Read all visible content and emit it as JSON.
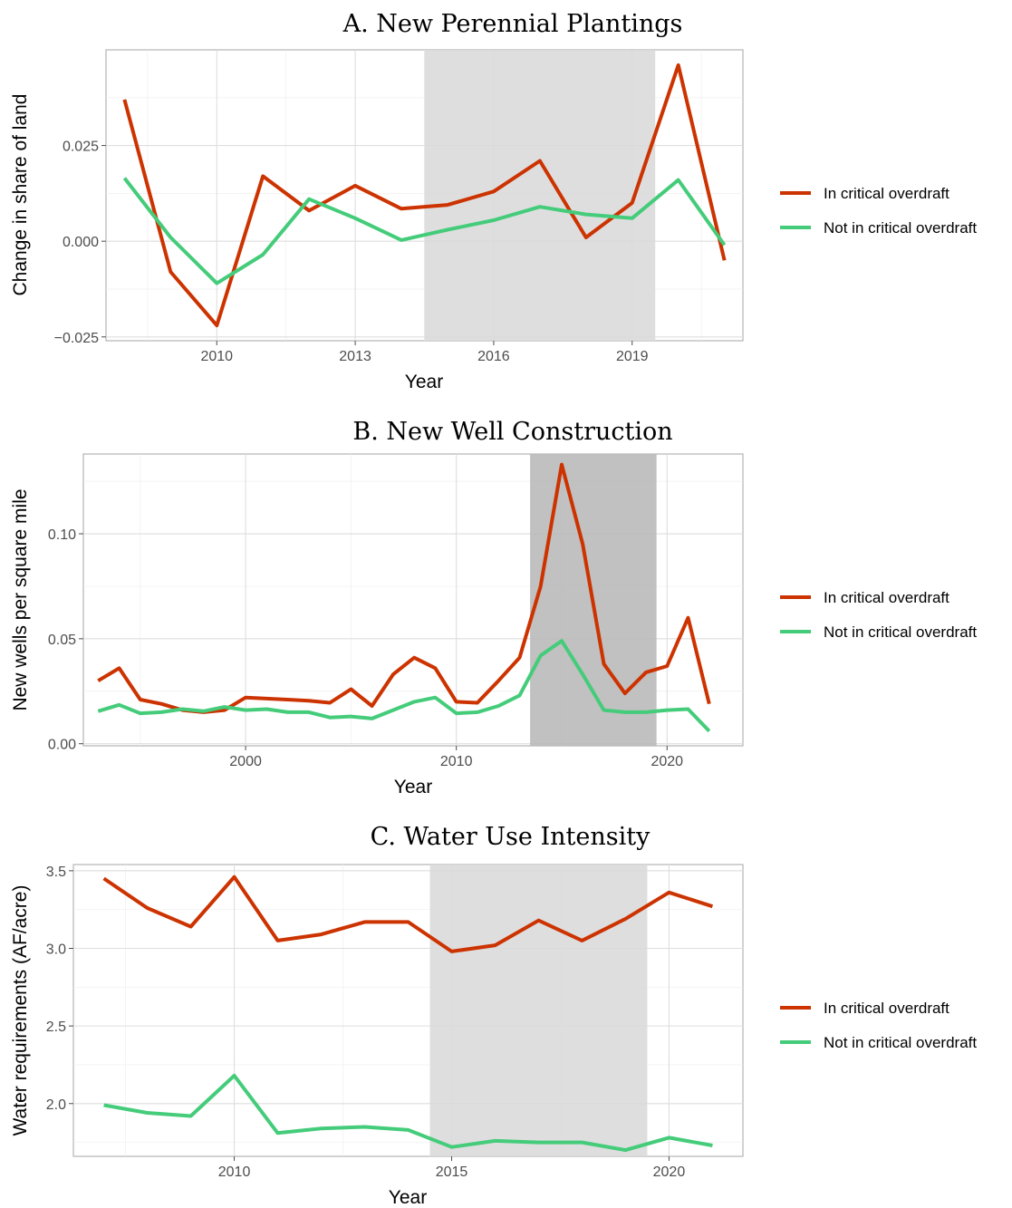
{
  "legend": {
    "items": [
      {
        "label": "In critical overdraft",
        "color": "#cc3300"
      },
      {
        "label": "Not in critical overdraft",
        "color": "#44cc7a"
      }
    ]
  },
  "chart_data": [
    {
      "type": "line",
      "title": "A. New Perennial Plantings",
      "xlabel": "Year",
      "ylabel": "Change in share of land",
      "xlim": [
        2007.6,
        2021.4
      ],
      "ylim": [
        -0.026,
        0.05
      ],
      "xticks": [
        2010,
        2013,
        2016,
        2019
      ],
      "xtick_labels": [
        "2010",
        "2013",
        "2016",
        "2019"
      ],
      "yticks": [
        -0.025,
        0,
        0.025
      ],
      "ytick_labels": [
        "−0.025",
        "0.000",
        "0.025"
      ],
      "grid": true,
      "legend_position": "right",
      "shaded_region": {
        "x": [
          2014.5,
          2019.5
        ],
        "color": "#d9d9d9"
      },
      "x": [
        2008,
        2009,
        2010,
        2011,
        2012,
        2013,
        2014,
        2015,
        2016,
        2017,
        2018,
        2019,
        2020,
        2021
      ],
      "series": [
        {
          "name": "In critical overdraft",
          "color": "#cc3300",
          "values": [
            0.037,
            -0.008,
            -0.022,
            0.017,
            0.008,
            0.0145,
            0.0085,
            0.0095,
            0.013,
            0.021,
            0.001,
            0.01,
            0.046,
            -0.005
          ]
        },
        {
          "name": "Not in critical overdraft",
          "color": "#44cc7a",
          "values": [
            0.0165,
            0.001,
            -0.011,
            -0.0035,
            0.011,
            0.006,
            0.0003,
            0.003,
            0.0055,
            0.009,
            0.007,
            0.006,
            0.016,
            -0.001
          ]
        }
      ]
    },
    {
      "type": "line",
      "title": "B. New Well Construction",
      "xlabel": "Year",
      "ylabel": "New wells per square mile",
      "xlim": [
        1992.3,
        2023.6
      ],
      "ylim": [
        -0.001,
        0.138
      ],
      "xticks": [
        2000,
        2010,
        2020
      ],
      "xtick_labels": [
        "2000",
        "2010",
        "2020"
      ],
      "yticks": [
        0,
        0.05,
        0.1
      ],
      "ytick_labels": [
        "0.00",
        "0.05",
        "0.10"
      ],
      "grid": true,
      "legend_position": "right",
      "shaded_region": {
        "x": [
          2013.5,
          2019.5
        ],
        "color": "#b8b8b8"
      },
      "x": [
        1993,
        1994,
        1995,
        1996,
        1997,
        1998,
        1999,
        2000,
        2001,
        2002,
        2003,
        2004,
        2005,
        2006,
        2007,
        2008,
        2009,
        2010,
        2011,
        2012,
        2013,
        2014,
        2015,
        2016,
        2017,
        2018,
        2019,
        2020,
        2021,
        2022
      ],
      "series": [
        {
          "name": "In critical overdraft",
          "color": "#cc3300",
          "values": [
            0.03,
            0.036,
            0.021,
            0.019,
            0.016,
            0.015,
            0.016,
            0.022,
            0.0215,
            0.021,
            0.0205,
            0.0195,
            0.026,
            0.018,
            0.033,
            0.041,
            0.036,
            0.02,
            0.0195,
            0.03,
            0.041,
            0.075,
            0.133,
            0.095,
            0.038,
            0.024,
            0.034,
            0.037,
            0.06,
            0.019
          ]
        },
        {
          "name": "Not in critical overdraft",
          "color": "#44cc7a",
          "values": [
            0.0155,
            0.0185,
            0.0145,
            0.015,
            0.0165,
            0.0155,
            0.0175,
            0.016,
            0.0165,
            0.015,
            0.015,
            0.0125,
            0.013,
            0.012,
            0.016,
            0.02,
            0.022,
            0.0145,
            0.015,
            0.018,
            0.023,
            0.042,
            0.049,
            0.033,
            0.016,
            0.015,
            0.015,
            0.016,
            0.0165,
            0.006
          ]
        }
      ]
    },
    {
      "type": "line",
      "title": "C. Water Use Intensity",
      "xlabel": "Year",
      "ylabel": "Water requirements (AF/acre)",
      "xlim": [
        2006.3,
        2021.7
      ],
      "ylim": [
        1.66,
        3.54
      ],
      "xticks": [
        2010,
        2015,
        2020
      ],
      "xtick_labels": [
        "2010",
        "2015",
        "2020"
      ],
      "yticks": [
        2.0,
        2.5,
        3.0,
        3.5
      ],
      "ytick_labels": [
        "2.0",
        "2.5",
        "3.0",
        "3.5"
      ],
      "grid": true,
      "legend_position": "right",
      "shaded_region": {
        "x": [
          2014.5,
          2019.5
        ],
        "color": "#d9d9d9"
      },
      "x": [
        2007,
        2008,
        2009,
        2010,
        2011,
        2012,
        2013,
        2014,
        2015,
        2016,
        2017,
        2018,
        2019,
        2020,
        2021
      ],
      "series": [
        {
          "name": "In critical overdraft",
          "color": "#cc3300",
          "values": [
            3.45,
            3.26,
            3.14,
            3.46,
            3.05,
            3.09,
            3.17,
            3.17,
            2.98,
            3.02,
            3.18,
            3.05,
            3.19,
            3.36,
            3.27
          ]
        },
        {
          "name": "Not in critical overdraft",
          "color": "#44cc7a",
          "values": [
            1.99,
            1.94,
            1.92,
            2.18,
            1.81,
            1.84,
            1.85,
            1.83,
            1.72,
            1.76,
            1.75,
            1.75,
            1.7,
            1.78,
            1.73
          ]
        }
      ]
    }
  ]
}
